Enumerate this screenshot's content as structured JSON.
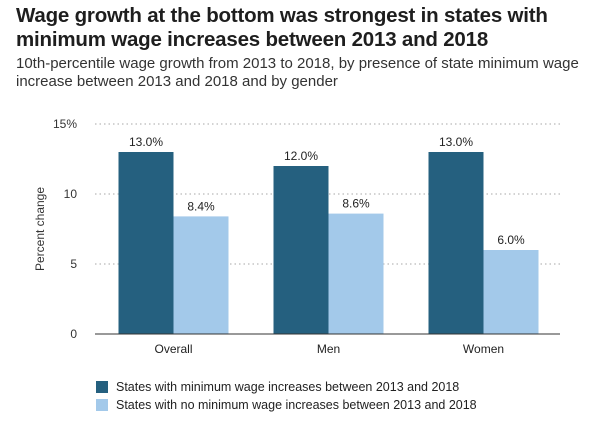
{
  "title": "Wage growth at the bottom was strongest in states with minimum wage increases between 2013 and 2018",
  "subtitle": "10th-percentile wage growth from 2013 to 2018, by presence of state minimum wage increase between 2013 and 2018 and by gender",
  "chart_data": {
    "type": "bar",
    "categories": [
      "Overall",
      "Men",
      "Women"
    ],
    "series": [
      {
        "name": "States with minimum wage increases between 2013 and 2018",
        "values": [
          13.0,
          12.0,
          13.0
        ],
        "labels": [
          "13.0%",
          "12.0%",
          "13.0%"
        ],
        "color": "#25607f"
      },
      {
        "name": "States with no minimum wage increases between 2013 and 2018",
        "values": [
          8.4,
          8.6,
          6.0
        ],
        "labels": [
          "8.4%",
          "8.6%",
          "6.0%"
        ],
        "color": "#a3c9ea"
      }
    ],
    "ylabel": "Percent change",
    "ylim": [
      0,
      15
    ],
    "yticks": [
      0,
      5,
      10,
      15
    ],
    "ytick_labels": [
      "0",
      "5",
      "10",
      "15%"
    ],
    "grid": true,
    "legend_position": "bottom-left"
  }
}
